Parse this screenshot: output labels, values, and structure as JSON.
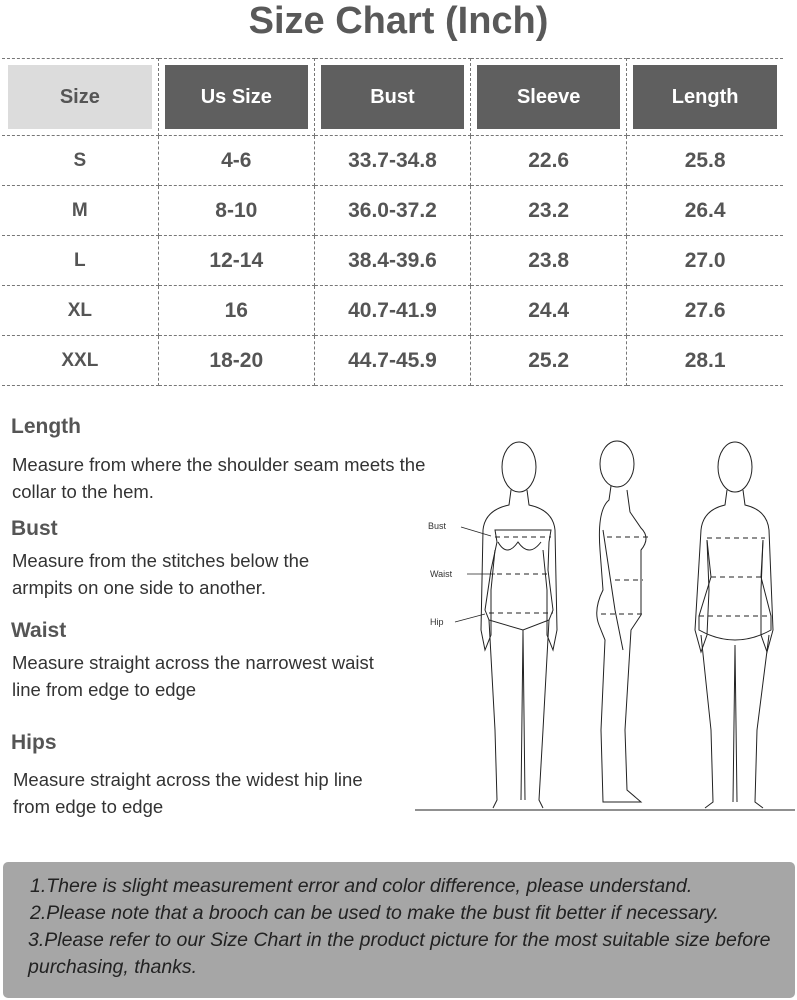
{
  "title": "Size Chart (Inch)",
  "table": {
    "headers": [
      "Size",
      "Us Size",
      "Bust",
      "Sleeve",
      "Length"
    ],
    "rows": [
      [
        "S",
        "4-6",
        "33.7-34.8",
        "22.6",
        "25.8"
      ],
      [
        "M",
        "8-10",
        "36.0-37.2",
        "23.2",
        "26.4"
      ],
      [
        "L",
        "12-14",
        "38.4-39.6",
        "23.8",
        "27.0"
      ],
      [
        "XL",
        "16",
        "40.7-41.9",
        "24.4",
        "27.6"
      ],
      [
        "XXL",
        "18-20",
        "44.7-45.9",
        "25.2",
        "28.1"
      ]
    ]
  },
  "guide": [
    {
      "heading": "Length",
      "text": "Measure from where the shoulder seam meets the collar to the hem."
    },
    {
      "heading": "Bust",
      "text": "Measure from the stitches below the armpits on one side to another."
    },
    {
      "heading": "Waist",
      "text": "Measure straight across the narrowest waist line from edge to edge"
    },
    {
      "heading": "Hips",
      "text": "Measure straight across the widest hip line from edge to edge"
    }
  ],
  "figure_labels": {
    "bust": "Bust",
    "waist": "Waist",
    "hip": "Hip"
  },
  "notes": [
    "1.There is slight measurement error and color difference, please understand.",
    "2.Please note that a brooch can be used to make the bust fit better if necessary.",
    "3.Please refer to our Size Chart in the product picture for the most suitable size before purchasing, thanks."
  ]
}
